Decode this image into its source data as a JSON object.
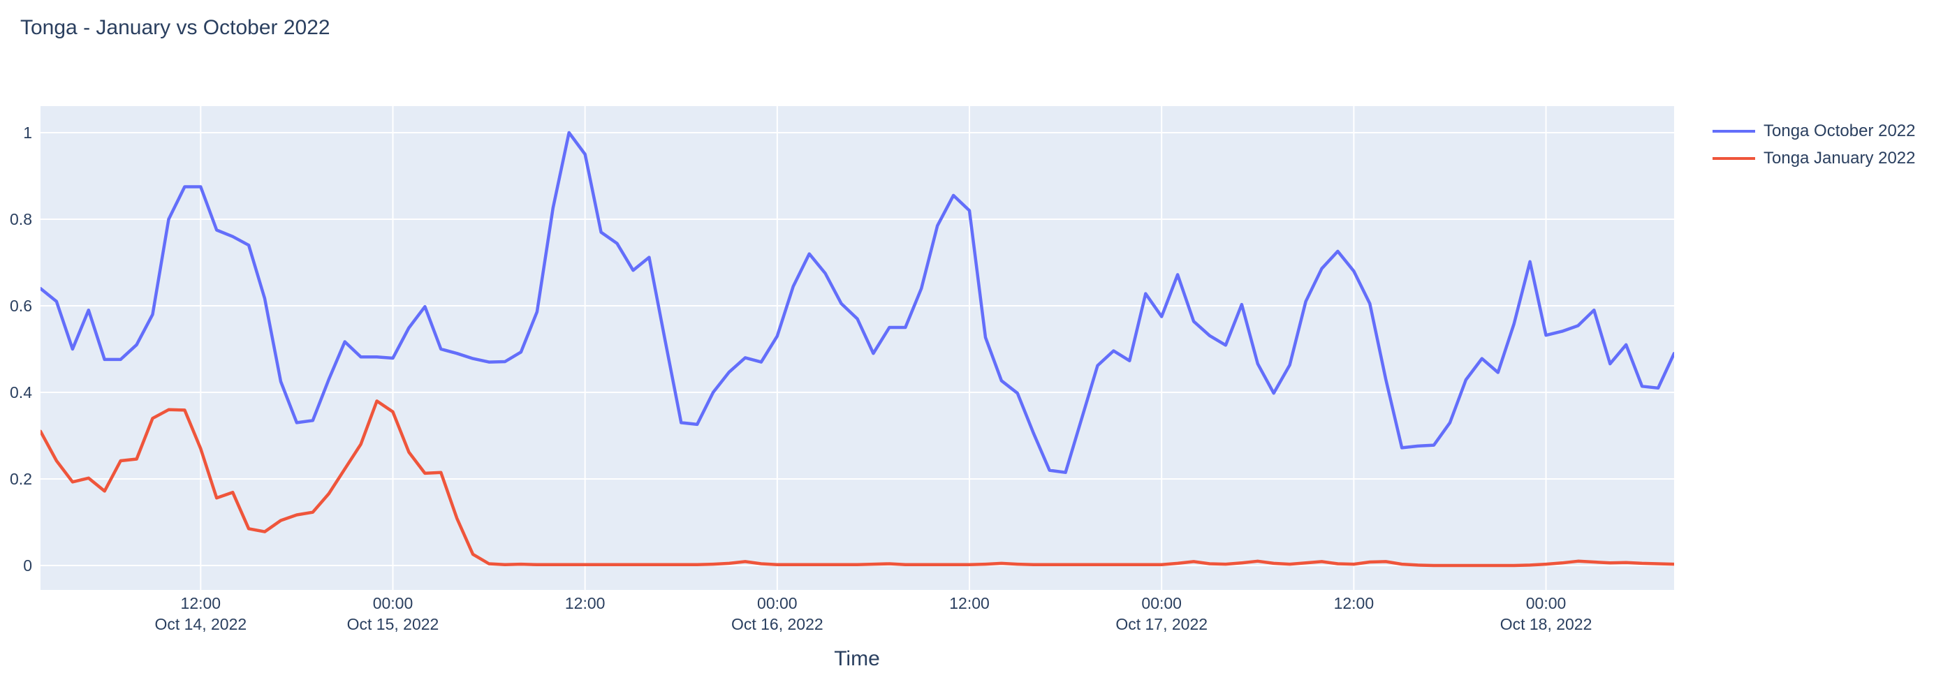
{
  "title": "Tonga - January vs October 2022",
  "colors": {
    "page_background": "#ffffff",
    "plot_background": "#e5ecf6",
    "grid": "#ffffff",
    "text": "#2a3f5f",
    "series_october": "#636efa",
    "series_january": "#ef553b"
  },
  "legend": {
    "items": [
      {
        "label": "Tonga October 2022",
        "color": "#636efa"
      },
      {
        "label": "Tonga January 2022",
        "color": "#ef553b"
      }
    ]
  },
  "x_axis": {
    "title": "Time",
    "tick_rows": [
      {
        "time": "12:00",
        "date": "Oct 14, 2022"
      },
      {
        "time": "00:00",
        "date": "Oct 15, 2022"
      },
      {
        "time": "12:00",
        "date": ""
      },
      {
        "time": "00:00",
        "date": "Oct 16, 2022"
      },
      {
        "time": "12:00",
        "date": ""
      },
      {
        "time": "00:00",
        "date": "Oct 17, 2022"
      },
      {
        "time": "12:00",
        "date": ""
      },
      {
        "time": "00:00",
        "date": "Oct 18, 2022"
      }
    ]
  },
  "y_axis": {
    "ticks": [
      "0",
      "0.2",
      "0.4",
      "0.6",
      "0.8",
      "1"
    ]
  },
  "chart_data": {
    "type": "line",
    "title": "Tonga - January vs October 2022",
    "xlabel": "Time",
    "ylabel": "",
    "grid": true,
    "legend_position": "right",
    "x_range": [
      "2022-10-14 02:00",
      "2022-10-18 08:00"
    ],
    "ylim": [
      -0.06,
      1.06
    ],
    "y_ticks": [
      0,
      0.2,
      0.4,
      0.6,
      0.8,
      1
    ],
    "x_ticks": [
      {
        "hours_from_start": 10,
        "time": "12:00",
        "date": "Oct 14, 2022"
      },
      {
        "hours_from_start": 22,
        "time": "00:00",
        "date": "Oct 15, 2022"
      },
      {
        "hours_from_start": 34,
        "time": "12:00",
        "date": ""
      },
      {
        "hours_from_start": 46,
        "time": "00:00",
        "date": "Oct 16, 2022"
      },
      {
        "hours_from_start": 58,
        "time": "12:00",
        "date": ""
      },
      {
        "hours_from_start": 70,
        "time": "00:00",
        "date": "Oct 17, 2022"
      },
      {
        "hours_from_start": 82,
        "time": "12:00",
        "date": ""
      },
      {
        "hours_from_start": 94,
        "time": "00:00",
        "date": "Oct 18, 2022"
      }
    ],
    "x": [
      "2022-10-14 02:00",
      "2022-10-14 03:00",
      "2022-10-14 04:00",
      "2022-10-14 05:00",
      "2022-10-14 06:00",
      "2022-10-14 07:00",
      "2022-10-14 08:00",
      "2022-10-14 09:00",
      "2022-10-14 10:00",
      "2022-10-14 11:00",
      "2022-10-14 12:00",
      "2022-10-14 13:00",
      "2022-10-14 14:00",
      "2022-10-14 15:00",
      "2022-10-14 16:00",
      "2022-10-14 17:00",
      "2022-10-14 18:00",
      "2022-10-14 19:00",
      "2022-10-14 20:00",
      "2022-10-14 21:00",
      "2022-10-14 22:00",
      "2022-10-14 23:00",
      "2022-10-15 00:00",
      "2022-10-15 01:00",
      "2022-10-15 02:00",
      "2022-10-15 03:00",
      "2022-10-15 04:00",
      "2022-10-15 05:00",
      "2022-10-15 06:00",
      "2022-10-15 07:00",
      "2022-10-15 08:00",
      "2022-10-15 09:00",
      "2022-10-15 10:00",
      "2022-10-15 11:00",
      "2022-10-15 12:00",
      "2022-10-15 13:00",
      "2022-10-15 14:00",
      "2022-10-15 15:00",
      "2022-10-15 16:00",
      "2022-10-15 17:00",
      "2022-10-15 18:00",
      "2022-10-15 19:00",
      "2022-10-15 20:00",
      "2022-10-15 21:00",
      "2022-10-15 22:00",
      "2022-10-15 23:00",
      "2022-10-16 00:00",
      "2022-10-16 01:00",
      "2022-10-16 02:00",
      "2022-10-16 03:00",
      "2022-10-16 04:00",
      "2022-10-16 05:00",
      "2022-10-16 06:00",
      "2022-10-16 07:00",
      "2022-10-16 08:00",
      "2022-10-16 09:00",
      "2022-10-16 10:00",
      "2022-10-16 11:00",
      "2022-10-16 12:00",
      "2022-10-16 13:00",
      "2022-10-16 14:00",
      "2022-10-16 15:00",
      "2022-10-16 16:00",
      "2022-10-16 17:00",
      "2022-10-16 18:00",
      "2022-10-16 19:00",
      "2022-10-16 20:00",
      "2022-10-16 21:00",
      "2022-10-16 22:00",
      "2022-10-16 23:00",
      "2022-10-17 00:00",
      "2022-10-17 01:00",
      "2022-10-17 02:00",
      "2022-10-17 03:00",
      "2022-10-17 04:00",
      "2022-10-17 05:00",
      "2022-10-17 06:00",
      "2022-10-17 07:00",
      "2022-10-17 08:00",
      "2022-10-17 09:00",
      "2022-10-17 10:00",
      "2022-10-17 11:00",
      "2022-10-17 12:00",
      "2022-10-17 13:00",
      "2022-10-17 14:00",
      "2022-10-17 15:00",
      "2022-10-17 16:00",
      "2022-10-17 17:00",
      "2022-10-17 18:00",
      "2022-10-17 19:00",
      "2022-10-17 20:00",
      "2022-10-17 21:00",
      "2022-10-17 22:00",
      "2022-10-17 23:00",
      "2022-10-18 00:00",
      "2022-10-18 01:00",
      "2022-10-18 02:00",
      "2022-10-18 03:00",
      "2022-10-18 04:00",
      "2022-10-18 05:00",
      "2022-10-18 06:00",
      "2022-10-18 07:00",
      "2022-10-18 08:00"
    ],
    "series": [
      {
        "name": "Tonga October 2022",
        "color": "#636efa",
        "values": [
          0.64,
          0.61,
          0.5,
          0.59,
          0.476,
          0.476,
          0.51,
          0.58,
          0.8,
          0.875,
          0.875,
          0.775,
          0.76,
          0.74,
          0.617,
          0.425,
          0.33,
          0.335,
          0.43,
          0.517,
          0.482,
          0.482,
          0.479,
          0.549,
          0.598,
          0.5,
          0.49,
          0.478,
          0.47,
          0.471,
          0.493,
          0.586,
          0.826,
          1.0,
          0.95,
          0.77,
          0.744,
          0.682,
          0.712,
          0.52,
          0.33,
          0.326,
          0.4,
          0.447,
          0.48,
          0.47,
          0.53,
          0.645,
          0.72,
          0.675,
          0.605,
          0.57,
          0.49,
          0.55,
          0.55,
          0.64,
          0.785,
          0.855,
          0.82,
          0.527,
          0.427,
          0.398,
          0.306,
          0.22,
          0.215,
          0.338,
          0.462,
          0.496,
          0.473,
          0.628,
          0.575,
          0.672,
          0.564,
          0.531,
          0.509,
          0.603,
          0.466,
          0.398,
          0.463,
          0.61,
          0.686,
          0.726,
          0.68,
          0.605,
          0.43,
          0.272,
          0.276,
          0.278,
          0.33,
          0.429,
          0.478,
          0.446,
          0.558,
          0.702,
          0.532,
          0.541,
          0.554,
          0.59,
          0.466,
          0.51,
          0.414,
          0.41,
          0.49
        ]
      },
      {
        "name": "Tonga January 2022",
        "color": "#ef553b",
        "values": [
          0.31,
          0.242,
          0.193,
          0.202,
          0.172,
          0.242,
          0.246,
          0.34,
          0.36,
          0.359,
          0.27,
          0.156,
          0.169,
          0.085,
          0.078,
          0.104,
          0.117,
          0.123,
          0.166,
          0.223,
          0.28,
          0.38,
          0.355,
          0.262,
          0.213,
          0.215,
          0.109,
          0.026,
          0.004,
          0.002,
          0.003,
          0.002,
          0.002,
          0.002,
          0.002,
          0.002,
          0.002,
          0.002,
          0.002,
          0.002,
          0.002,
          0.002,
          0.003,
          0.005,
          0.009,
          0.004,
          0.002,
          0.002,
          0.002,
          0.002,
          0.002,
          0.002,
          0.003,
          0.004,
          0.002,
          0.002,
          0.002,
          0.002,
          0.002,
          0.003,
          0.005,
          0.003,
          0.002,
          0.002,
          0.002,
          0.002,
          0.002,
          0.002,
          0.002,
          0.002,
          0.002,
          0.005,
          0.009,
          0.004,
          0.003,
          0.006,
          0.01,
          0.005,
          0.003,
          0.006,
          0.009,
          0.004,
          0.003,
          0.008,
          0.009,
          0.003,
          0.001,
          0.0,
          0.0,
          0.0,
          0.0,
          0.0,
          0.0,
          0.001,
          0.003,
          0.006,
          0.01,
          0.008,
          0.006,
          0.007,
          0.005,
          0.004,
          0.003
        ]
      }
    ]
  }
}
